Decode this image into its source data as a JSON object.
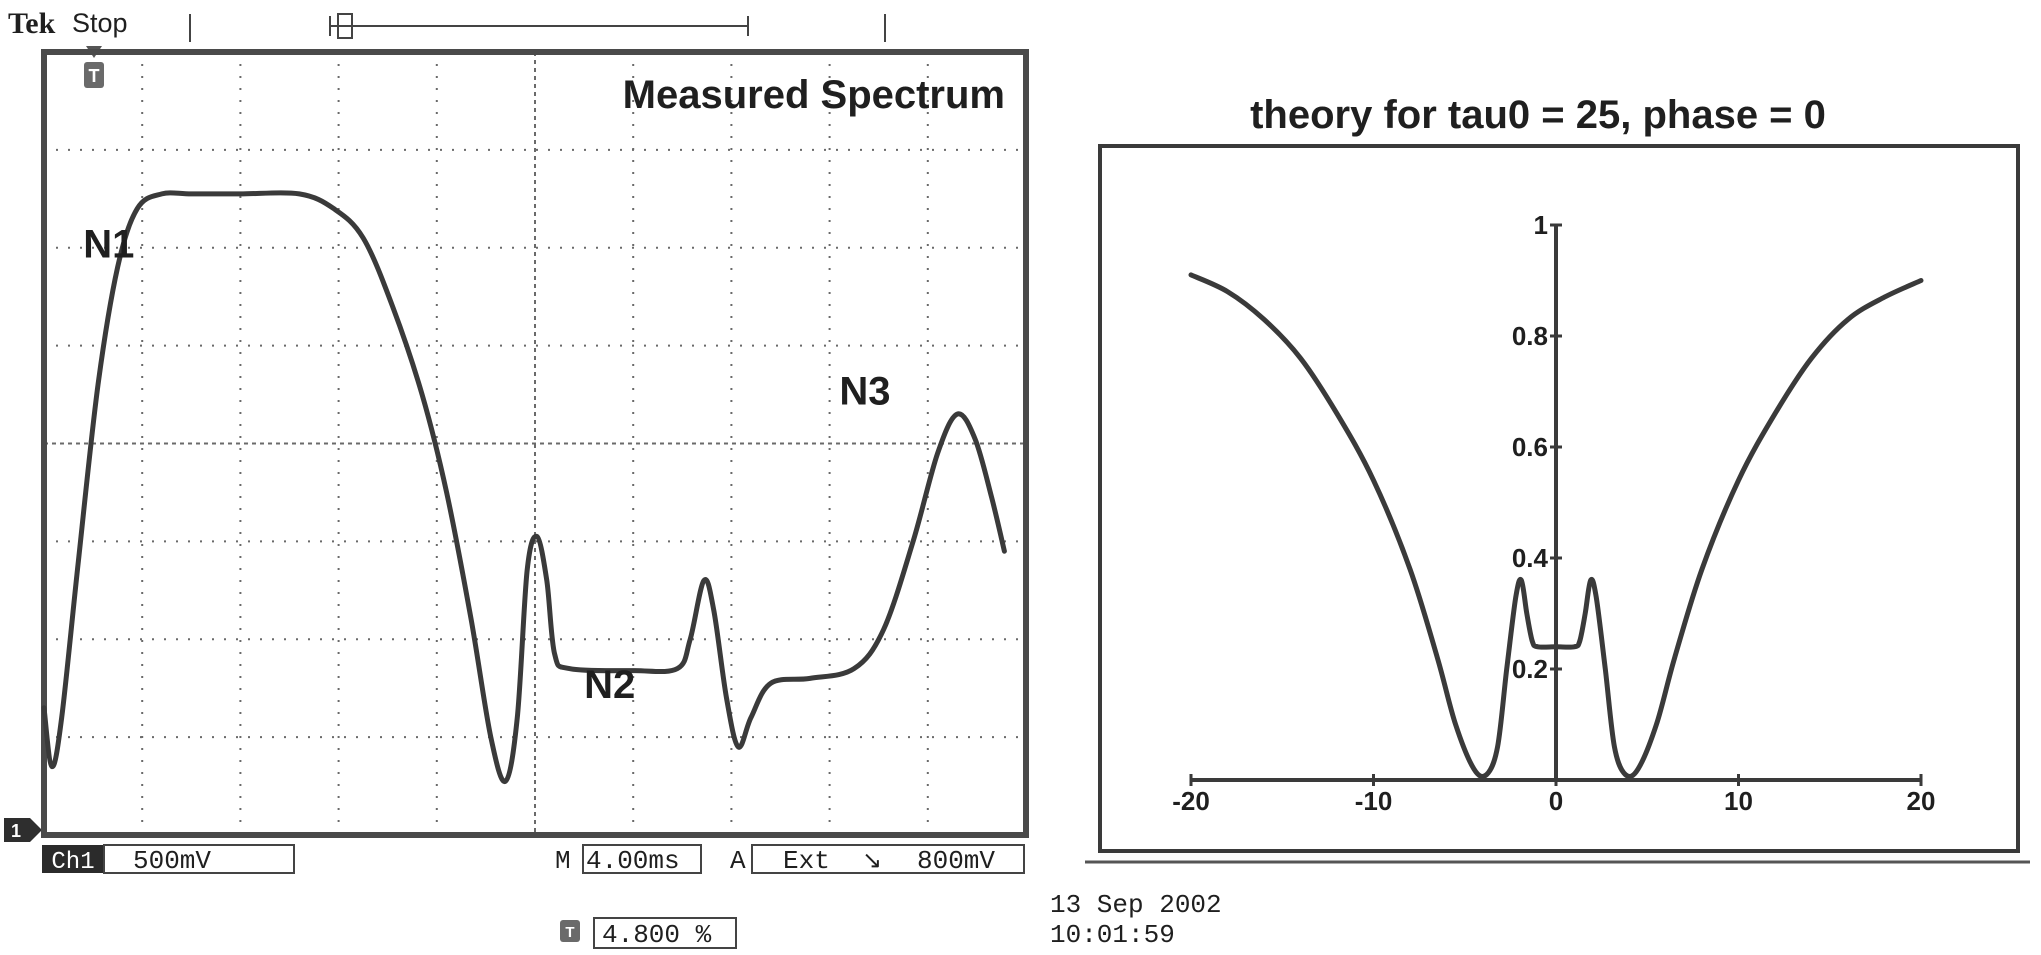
{
  "scope": {
    "brand": "Tek",
    "state": "Stop",
    "trigger_marker": "T",
    "channel_marker": "1",
    "title": "Measured Spectrum",
    "ch_label": "Ch1",
    "volts_per_div": "500mV",
    "m_label": "M",
    "time_per_div": "4.00ms",
    "a_label": "A",
    "trigger_source": "Ext",
    "trigger_slope": "↘",
    "trigger_level": "800mV",
    "trigger_pos_icon": "T",
    "trigger_position": "4.800 %",
    "date": "13 Sep  2002",
    "time": "10:01:59"
  },
  "colors": {
    "trace": "#3a3a3a",
    "grid": "#6a6a6a",
    "frame": "#4a4a4a"
  },
  "chart_data": [
    {
      "type": "line",
      "title": "Measured Spectrum",
      "xlabel": "",
      "ylabel": "",
      "grid": true,
      "xlim": [
        0,
        10
      ],
      "ylim": [
        -4,
        4
      ],
      "annotations": [
        {
          "text": "N1",
          "x": 0.4,
          "y": 1.9
        },
        {
          "text": "N2",
          "x": 5.5,
          "y": -2.6
        },
        {
          "text": "N3",
          "x": 8.1,
          "y": 0.4
        }
      ],
      "series": [
        {
          "values": [
            [
              0.0,
              -2.7
            ],
            [
              0.08,
              -3.3
            ],
            [
              0.18,
              -2.8
            ],
            [
              0.35,
              -1.2
            ],
            [
              0.55,
              0.6
            ],
            [
              0.75,
              1.8
            ],
            [
              0.95,
              2.4
            ],
            [
              1.2,
              2.55
            ],
            [
              1.5,
              2.55
            ],
            [
              2.0,
              2.55
            ],
            [
              2.6,
              2.55
            ],
            [
              2.95,
              2.4
            ],
            [
              3.25,
              2.1
            ],
            [
              3.55,
              1.4
            ],
            [
              3.85,
              0.5
            ],
            [
              4.1,
              -0.5
            ],
            [
              4.35,
              -1.8
            ],
            [
              4.55,
              -3.0
            ],
            [
              4.7,
              -3.45
            ],
            [
              4.82,
              -2.8
            ],
            [
              4.92,
              -1.3
            ],
            [
              5.02,
              -0.95
            ],
            [
              5.12,
              -1.4
            ],
            [
              5.2,
              -2.15
            ],
            [
              5.35,
              -2.3
            ],
            [
              6.0,
              -2.32
            ],
            [
              6.45,
              -2.3
            ],
            [
              6.58,
              -2.0
            ],
            [
              6.72,
              -1.4
            ],
            [
              6.82,
              -1.7
            ],
            [
              6.95,
              -2.6
            ],
            [
              7.07,
              -3.1
            ],
            [
              7.2,
              -2.8
            ],
            [
              7.4,
              -2.45
            ],
            [
              7.8,
              -2.4
            ],
            [
              8.25,
              -2.3
            ],
            [
              8.55,
              -1.9
            ],
            [
              8.85,
              -1.0
            ],
            [
              9.1,
              -0.1
            ],
            [
              9.3,
              0.3
            ],
            [
              9.48,
              0.05
            ],
            [
              9.65,
              -0.55
            ],
            [
              9.78,
              -1.1
            ]
          ]
        }
      ]
    },
    {
      "type": "line",
      "title": "theory for tau0 = 25, phase = 0",
      "xlabel": "",
      "ylabel": "",
      "xlim": [
        -20,
        20
      ],
      "ylim": [
        0,
        1
      ],
      "xticks": [
        "-20",
        "-10",
        "0",
        "10",
        "20"
      ],
      "yticks": [
        "0.2",
        "0.4",
        "0.6",
        "0.8",
        "1"
      ],
      "series": [
        {
          "values": [
            [
              -20,
              0.91
            ],
            [
              -18,
              0.88
            ],
            [
              -16,
              0.83
            ],
            [
              -14,
              0.76
            ],
            [
              -12,
              0.66
            ],
            [
              -10,
              0.54
            ],
            [
              -8,
              0.38
            ],
            [
              -6.5,
              0.22
            ],
            [
              -5.5,
              0.1
            ],
            [
              -4.5,
              0.02
            ],
            [
              -3.8,
              0.01
            ],
            [
              -3.2,
              0.06
            ],
            [
              -2.7,
              0.2
            ],
            [
              -2.2,
              0.33
            ],
            [
              -1.9,
              0.36
            ],
            [
              -1.6,
              0.3
            ],
            [
              -1.3,
              0.25
            ],
            [
              -1.0,
              0.24
            ],
            [
              0.0,
              0.24
            ],
            [
              1.0,
              0.24
            ],
            [
              1.3,
              0.25
            ],
            [
              1.6,
              0.3
            ],
            [
              1.9,
              0.36
            ],
            [
              2.2,
              0.33
            ],
            [
              2.7,
              0.2
            ],
            [
              3.2,
              0.06
            ],
            [
              3.8,
              0.01
            ],
            [
              4.5,
              0.02
            ],
            [
              5.5,
              0.1
            ],
            [
              6.5,
              0.22
            ],
            [
              8,
              0.38
            ],
            [
              10,
              0.54
            ],
            [
              12,
              0.66
            ],
            [
              14,
              0.76
            ],
            [
              16,
              0.83
            ],
            [
              18,
              0.87
            ],
            [
              20,
              0.9
            ]
          ]
        }
      ]
    }
  ]
}
